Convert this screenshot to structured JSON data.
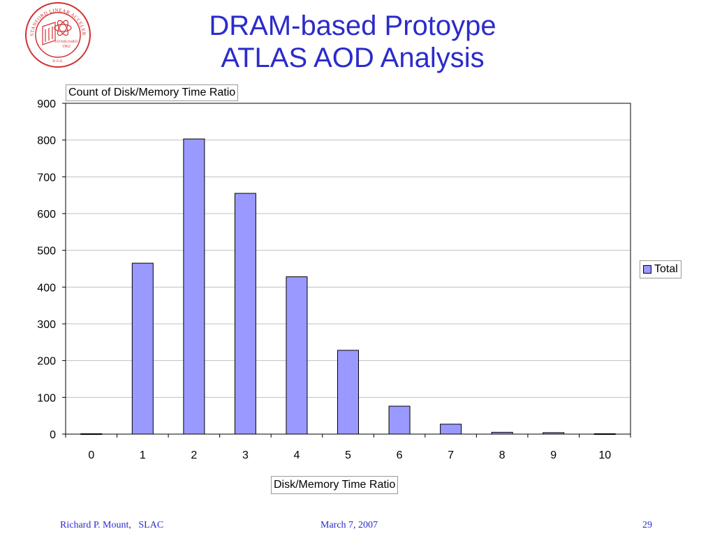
{
  "slide": {
    "title_line1": "DRAM-based Protoype",
    "title_line2": "ATLAS AOD Analysis",
    "footer_left": "Richard P. Mount,   SLAC",
    "footer_center": "March 7, 2007",
    "footer_right": "29"
  },
  "logo": {
    "icon": "slac-seal-icon",
    "text": "STANFORD LINEAR ACCELERATOR CENTER",
    "established": "ESTABLISHED",
    "year": "1962",
    "doe": "D.O.E."
  },
  "colors": {
    "title": "#2b2bcc",
    "bar_fill": "#9999ff",
    "bar_stroke": "#000000",
    "gridline": "#c0c0c0"
  },
  "chart_data": {
    "type": "bar",
    "field_label": "Count of Disk/Memory Time Ratio",
    "categories": [
      "0",
      "1",
      "2",
      "3",
      "4",
      "5",
      "6",
      "7",
      "8",
      "9",
      "10"
    ],
    "series": [
      {
        "name": "Total",
        "values": [
          1,
          465,
          803,
          655,
          428,
          228,
          76,
          27,
          5,
          4,
          1
        ]
      }
    ],
    "xlabel": "Disk/Memory Time Ratio",
    "ylabel": "",
    "ylim": [
      0,
      900
    ],
    "yticks": [
      0,
      100,
      200,
      300,
      400,
      500,
      600,
      700,
      800,
      900
    ],
    "grid": true,
    "legend_position": "right"
  }
}
